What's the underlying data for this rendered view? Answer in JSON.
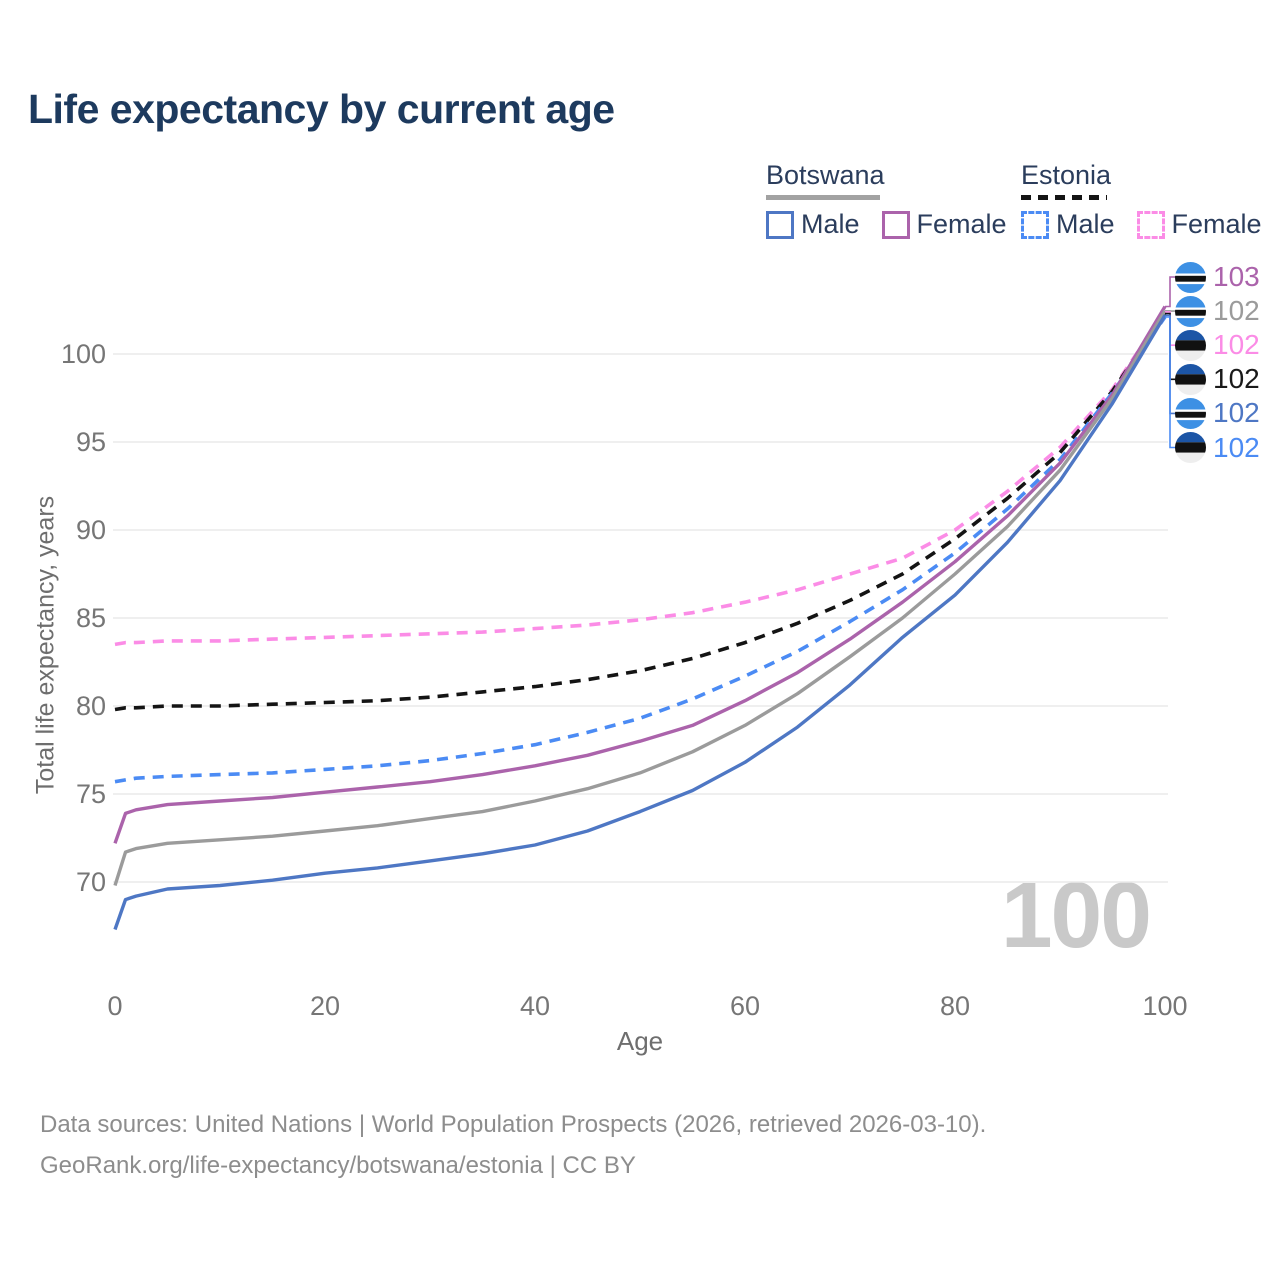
{
  "title": "Life expectancy by current age",
  "legend": {
    "groups": [
      {
        "label": "Botswana",
        "line_style": "solid",
        "underline_color": "#a2a2a2",
        "items": [
          {
            "label": "Male",
            "color": "#4e77c4",
            "dashed": false
          },
          {
            "label": "Female",
            "color": "#bånd66b2",
            "dashed": false
          }
        ]
      },
      {
        "label": "Estonia",
        "line_style": "dashed",
        "underline_color": "#141414",
        "items": [
          {
            "label": "Male",
            "color": "#4b8bf4",
            "dashed": true
          },
          {
            "label": "Female",
            "color": "#fb8ce6",
            "dashed": true
          }
        ]
      }
    ]
  },
  "chart_data": {
    "type": "line",
    "title": "Life expectancy by current age",
    "xlabel": "Age",
    "ylabel": "Total life expectancy, years",
    "xlim": [
      0,
      100
    ],
    "ylim": [
      66.5,
      103.5
    ],
    "xticks": [
      0,
      20,
      40,
      60,
      80,
      100
    ],
    "yticks": [
      70,
      75,
      80,
      85,
      90,
      95,
      100
    ],
    "grid": "horizontal",
    "legend_position": "top-right",
    "x": [
      0,
      1,
      2,
      5,
      10,
      15,
      20,
      25,
      30,
      35,
      40,
      45,
      50,
      55,
      60,
      65,
      70,
      75,
      80,
      85,
      90,
      95,
      100
    ],
    "series": [
      {
        "name": "Estonia Female",
        "country": "Estonia",
        "sex": "Female",
        "color": "#fb8ce6",
        "dashed": true,
        "values": [
          83.5,
          83.6,
          83.6,
          83.7,
          83.7,
          83.8,
          83.9,
          84.0,
          84.1,
          84.2,
          84.4,
          84.6,
          84.9,
          85.3,
          85.9,
          86.6,
          87.5,
          88.4,
          90.0,
          92.2,
          94.7,
          98.0,
          102.4
        ]
      },
      {
        "name": "Estonia",
        "country": "Estonia",
        "sex": "Combined",
        "color": "#141414",
        "dashed": true,
        "values": [
          79.8,
          79.9,
          79.9,
          80.0,
          80.0,
          80.1,
          80.2,
          80.3,
          80.5,
          80.8,
          81.1,
          81.5,
          82.0,
          82.7,
          83.6,
          84.7,
          86.0,
          87.5,
          89.5,
          91.8,
          94.4,
          97.9,
          102.3
        ]
      },
      {
        "name": "Estonia Male",
        "country": "Estonia",
        "sex": "Male",
        "color": "#4b8bf4",
        "dashed": true,
        "values": [
          75.7,
          75.8,
          75.9,
          76.0,
          76.1,
          76.2,
          76.4,
          76.6,
          76.9,
          77.3,
          77.8,
          78.5,
          79.3,
          80.4,
          81.7,
          83.1,
          84.8,
          86.6,
          88.7,
          91.2,
          94.0,
          97.8,
          102.1
        ]
      },
      {
        "name": "Botswana Female",
        "country": "Botswana",
        "sex": "Female",
        "color": "#ab63ab",
        "dashed": false,
        "values": [
          72.2,
          73.9,
          74.1,
          74.4,
          74.6,
          74.8,
          75.1,
          75.4,
          75.7,
          76.1,
          76.6,
          77.2,
          78.0,
          78.9,
          80.3,
          81.9,
          83.8,
          85.9,
          88.2,
          90.8,
          93.8,
          97.7,
          102.7
        ]
      },
      {
        "name": "Botswana",
        "country": "Botswana",
        "sex": "Combined",
        "color": "#9b9b9b",
        "dashed": false,
        "values": [
          69.8,
          71.7,
          71.9,
          72.2,
          72.4,
          72.6,
          72.9,
          73.2,
          73.6,
          74.0,
          74.6,
          75.3,
          76.2,
          77.4,
          78.9,
          80.7,
          82.8,
          85.0,
          87.5,
          90.2,
          93.4,
          97.5,
          102.45
        ]
      },
      {
        "name": "Botswana Male",
        "country": "Botswana",
        "sex": "Male",
        "color": "#4e77c4",
        "dashed": false,
        "values": [
          67.3,
          69.0,
          69.2,
          69.6,
          69.8,
          70.1,
          70.5,
          70.8,
          71.2,
          71.6,
          72.1,
          72.9,
          74.0,
          75.2,
          76.8,
          78.8,
          81.2,
          83.9,
          86.3,
          89.3,
          92.8,
          97.2,
          102.2
        ]
      }
    ],
    "end_labels": [
      {
        "text": "103",
        "color": "#ab63ab",
        "flag": "botswana",
        "series": "Botswana Female"
      },
      {
        "text": "102",
        "color": "#9b9b9b",
        "flag": "botswana",
        "series": "Botswana"
      },
      {
        "text": "102",
        "color": "#fb8ce6",
        "flag": "estonia",
        "series": "Estonia Female"
      },
      {
        "text": "102",
        "color": "#1a1a1a",
        "flag": "estonia",
        "series": "Estonia"
      },
      {
        "text": "102",
        "color": "#4e77c4",
        "flag": "botswana",
        "series": "Botswana Male"
      },
      {
        "text": "102",
        "color": "#4b8bf4",
        "flag": "estonia",
        "series": "Estonia Male"
      }
    ],
    "watermark": "100",
    "flag_colors": {
      "botswana": {
        "azure": "#3d90e4",
        "white": "#ffffff",
        "black": "#111111"
      },
      "estonia": {
        "blue": "#1c55a6",
        "black": "#111111",
        "white": "#eeeeee"
      }
    }
  },
  "footer": {
    "line1": "Data sources: United Nations | World Population Prospects (2026, retrieved 2026-03-10).",
    "line2": "GeoRank.org/life-expectancy/botswana/estonia | CC BY"
  }
}
